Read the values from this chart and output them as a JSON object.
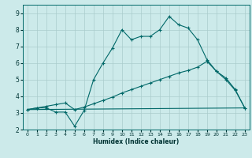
{
  "xlabel": "Humidex (Indice chaleur)",
  "background_color": "#cceaea",
  "grid_color": "#aacccc",
  "line_color": "#006868",
  "xlim": [
    -0.5,
    23.5
  ],
  "ylim": [
    2.0,
    9.5
  ],
  "xticks": [
    0,
    1,
    2,
    3,
    4,
    5,
    6,
    7,
    8,
    9,
    10,
    11,
    12,
    13,
    14,
    15,
    16,
    17,
    18,
    19,
    20,
    21,
    22,
    23
  ],
  "yticks": [
    2,
    3,
    4,
    5,
    6,
    7,
    8,
    9
  ],
  "line1_x": [
    0,
    1,
    2,
    3,
    4,
    5,
    6,
    7,
    8,
    9,
    10,
    11,
    12,
    13,
    14,
    15,
    16,
    17,
    18,
    19,
    20,
    21,
    22,
    23
  ],
  "line1_y": [
    3.2,
    3.3,
    3.3,
    3.05,
    3.05,
    2.2,
    3.15,
    5.0,
    6.0,
    6.9,
    8.0,
    7.4,
    7.6,
    7.6,
    8.0,
    8.8,
    8.3,
    8.1,
    7.4,
    6.2,
    5.5,
    5.1,
    4.4,
    3.3
  ],
  "line2_x": [
    0,
    23
  ],
  "line2_y": [
    3.2,
    3.3
  ],
  "line3_x": [
    0,
    1,
    2,
    3,
    4,
    5,
    6,
    7,
    8,
    9,
    10,
    11,
    12,
    13,
    14,
    15,
    16,
    17,
    18,
    19,
    20,
    21,
    22,
    23
  ],
  "line3_y": [
    3.2,
    3.3,
    3.4,
    3.5,
    3.6,
    3.2,
    3.35,
    3.55,
    3.75,
    3.95,
    4.2,
    4.4,
    4.6,
    4.8,
    5.0,
    5.2,
    5.4,
    5.55,
    5.75,
    6.1,
    5.5,
    5.0,
    4.35,
    3.3
  ]
}
